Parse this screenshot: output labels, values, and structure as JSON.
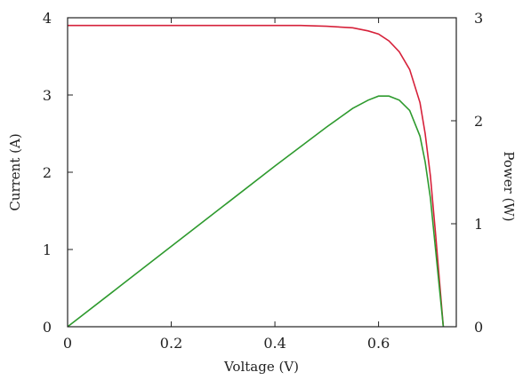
{
  "chart_data": {
    "type": "line",
    "title": "",
    "xlabel": "Voltage (V)",
    "ylabel": "Current (A)",
    "y2label": "Power (W)",
    "xlim": [
      0,
      0.75
    ],
    "ylim": [
      0,
      4
    ],
    "y2lim": [
      0,
      3
    ],
    "x_ticks": [
      "0",
      "0.2",
      "0.4",
      "0.6"
    ],
    "y_ticks": [
      "0",
      "1",
      "2",
      "3",
      "4"
    ],
    "y2_ticks": [
      "0",
      "1",
      "2",
      "3"
    ],
    "grid": false,
    "series": [
      {
        "axis": "left",
        "color": "#d6213a",
        "x": [
          0,
          0.1,
          0.2,
          0.3,
          0.4,
          0.45,
          0.5,
          0.55,
          0.58,
          0.6,
          0.62,
          0.64,
          0.66,
          0.68,
          0.69,
          0.7,
          0.71,
          0.72,
          0.725
        ],
        "y": [
          3.9,
          3.9,
          3.9,
          3.9,
          3.9,
          3.9,
          3.89,
          3.87,
          3.83,
          3.79,
          3.7,
          3.56,
          3.33,
          2.9,
          2.5,
          1.95,
          1.2,
          0.4,
          0
        ]
      },
      {
        "axis": "right",
        "color": "#2e9a2e",
        "x": [
          0,
          0.1,
          0.2,
          0.3,
          0.4,
          0.45,
          0.5,
          0.55,
          0.58,
          0.6,
          0.62,
          0.64,
          0.66,
          0.68,
          0.69,
          0.7,
          0.71,
          0.72,
          0.725
        ],
        "y": [
          0,
          0.39,
          0.78,
          1.17,
          1.56,
          1.75,
          1.94,
          2.12,
          2.2,
          2.24,
          2.24,
          2.2,
          2.1,
          1.85,
          1.6,
          1.25,
          0.75,
          0.25,
          0
        ]
      }
    ]
  }
}
